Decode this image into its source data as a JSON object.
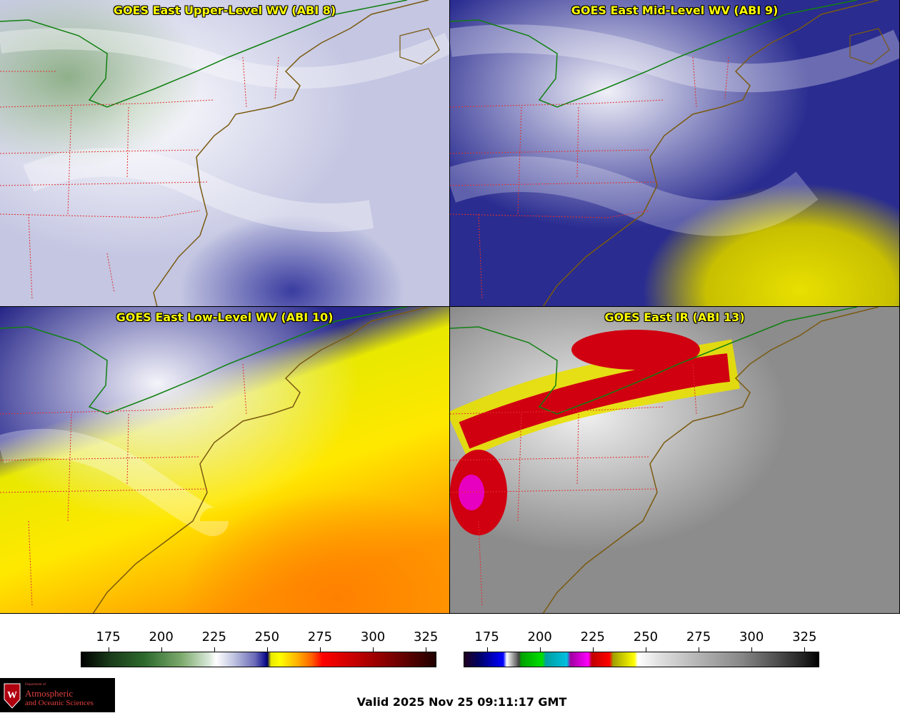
{
  "panels": [
    {
      "id": "p1",
      "title": "GOES East Upper-Level WV (ABI 8)"
    },
    {
      "id": "p2",
      "title": "GOES East Mid-Level WV (ABI 9)"
    },
    {
      "id": "p3",
      "title": "GOES East Low-Level WV (ABI 10)"
    },
    {
      "id": "p4",
      "title": "GOES East IR (ABI 13)"
    }
  ],
  "colorbars": {
    "water_vapor": {
      "ticks": [
        "175",
        "200",
        "225",
        "250",
        "275",
        "300",
        "325"
      ],
      "range": [
        162,
        330
      ]
    },
    "infrared": {
      "ticks": [
        "175",
        "200",
        "225",
        "250",
        "275",
        "300",
        "325"
      ],
      "range": [
        164,
        332
      ]
    }
  },
  "logo": {
    "dept": "Department of",
    "line1": "Atmospheric",
    "line2": "and Oceanic Sciences"
  },
  "valid_time": "Valid 2025 Nov 25 09:11:17 GMT",
  "colors": {
    "state_borders": "#e03030",
    "coastline": "#7a5a10",
    "us_canada_border": "#108010",
    "title_text": "#ffff00"
  }
}
